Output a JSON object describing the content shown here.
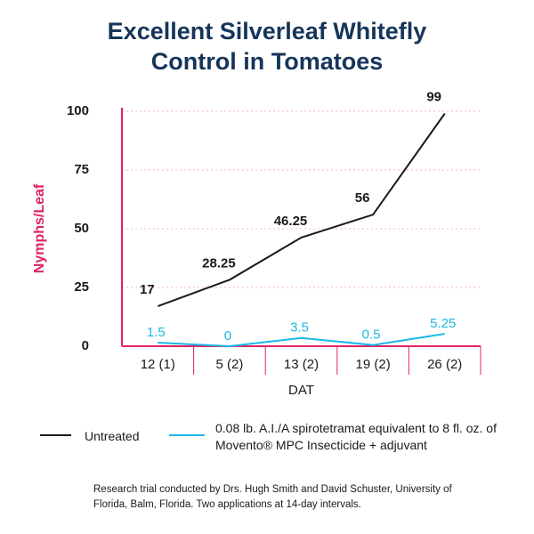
{
  "chart_data": {
    "type": "line",
    "title": "Excellent Silverleaf Whitefly Control in Tomatoes",
    "x_label": "DAT",
    "y_label": "Nymphs/Leaf",
    "categories": [
      "12 (1)",
      "5 (2)",
      "13 (2)",
      "19 (2)",
      "26 (2)"
    ],
    "series": [
      {
        "name": "Untreated",
        "color": "#1a1a1a",
        "values": [
          17,
          28.25,
          46.25,
          56,
          99
        ]
      },
      {
        "name": "0.08 lb. A.I./A spirotetramat equivalent to 8 fl. oz. of Movento® MPC Insecticide + adjuvant",
        "color": "#1ab8e6",
        "values": [
          1.5,
          0,
          3.5,
          0.5,
          5.25
        ]
      }
    ],
    "ylim": [
      0,
      100
    ],
    "yticks": [
      0,
      25,
      50,
      75,
      100
    ],
    "grid": true,
    "footnote": "Research trial conducted by Drs. Hugh Smith and David Schuster, University of Florida, Balm, Florida. Two applications at 14-day intervals."
  }
}
